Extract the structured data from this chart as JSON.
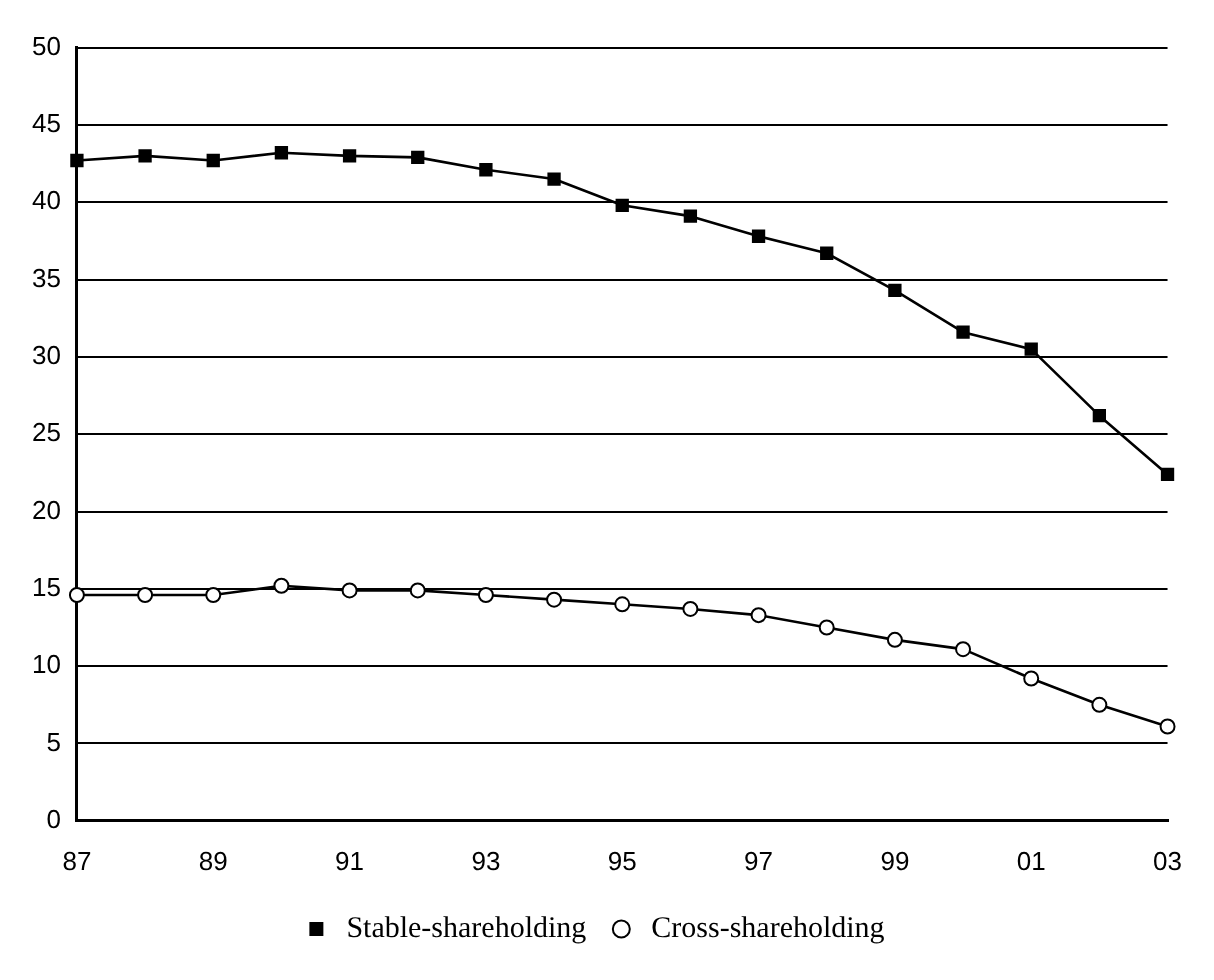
{
  "chart_data": {
    "type": "line",
    "categories": [
      "87",
      null,
      "89",
      null,
      "91",
      null,
      "93",
      null,
      "95",
      null,
      "97",
      null,
      "99",
      null,
      "01",
      null,
      "03"
    ],
    "series": [
      {
        "name": "Stable-shareholding",
        "color": "#000000",
        "marker": "square",
        "values": [
          42.7,
          43.0,
          42.7,
          43.2,
          43.0,
          42.9,
          42.1,
          41.5,
          39.8,
          39.1,
          37.8,
          36.7,
          34.3,
          31.6,
          30.5,
          26.2,
          22.4
        ]
      },
      {
        "name": "Cross-shareholding",
        "color": "#000000",
        "marker": "circle",
        "values": [
          14.6,
          14.6,
          14.6,
          15.2,
          14.9,
          14.9,
          14.6,
          14.3,
          14.0,
          13.7,
          13.3,
          12.5,
          11.7,
          11.1,
          9.2,
          7.5,
          6.1
        ]
      }
    ],
    "ylim": [
      0,
      50
    ],
    "yticks": [
      0,
      5,
      10,
      15,
      20,
      25,
      30,
      35,
      40,
      45,
      50
    ],
    "grid": "y",
    "legend": "bottom",
    "line_style": "solid"
  }
}
